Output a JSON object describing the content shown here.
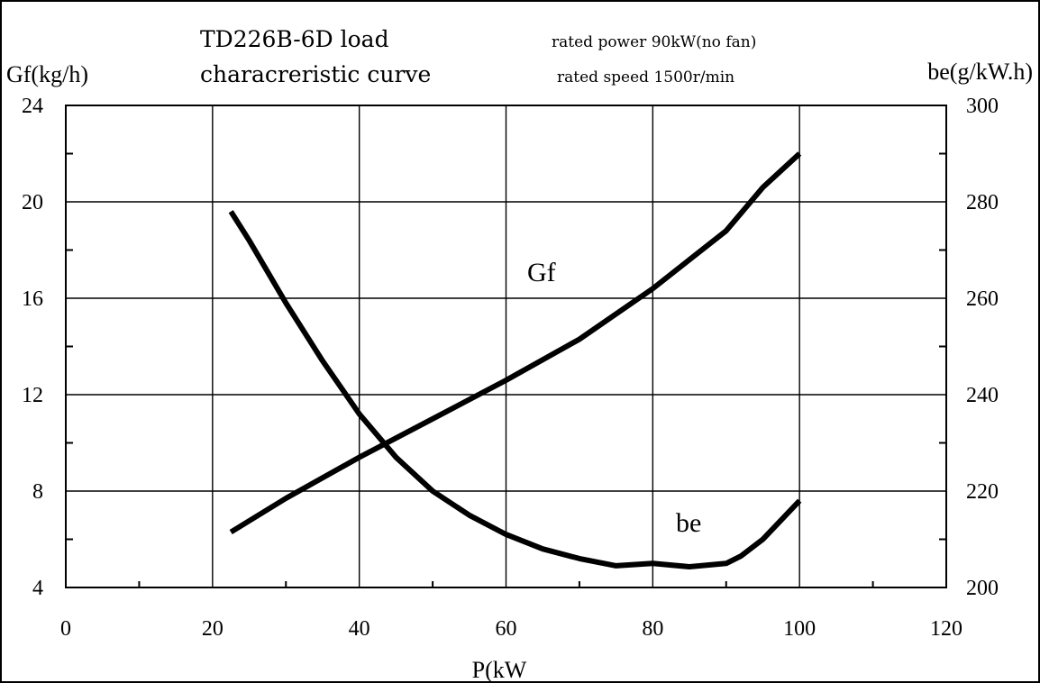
{
  "chart_data": {
    "type": "line",
    "title": "TD226B-6D  load",
    "subtitle": "characreristic curve",
    "notes": [
      "rated power 90kW(no fan)",
      "rated speed 1500r/min"
    ],
    "xlabel": "P(kW",
    "ylabel_left": "Gf(kg/h)",
    "ylabel_right": "be(g/kW.h)",
    "xlim": [
      0,
      120
    ],
    "ylim_left": [
      4,
      24
    ],
    "ylim_right": [
      200,
      300
    ],
    "x_ticks": [
      "0",
      "20",
      "40",
      "60",
      "80",
      "100",
      "120"
    ],
    "y_left_ticks": [
      "4",
      "8",
      "12",
      "16",
      "20",
      "24"
    ],
    "y_right_ticks": [
      "200",
      "220",
      "240",
      "260",
      "280",
      "300"
    ],
    "grid": true,
    "series": [
      {
        "name": "Gf",
        "axis": "left",
        "x": [
          22.5,
          30,
          40,
          50,
          60,
          70,
          80,
          90,
          95,
          100
        ],
        "y": [
          6.3,
          7.7,
          9.4,
          11.0,
          12.6,
          14.3,
          16.4,
          18.8,
          20.6,
          22.0
        ]
      },
      {
        "name": "be",
        "axis": "right",
        "x": [
          22.5,
          25,
          30,
          35,
          40,
          45,
          50,
          55,
          60,
          65,
          70,
          75,
          80,
          85,
          90,
          92,
          95,
          100
        ],
        "y": [
          278,
          272,
          259,
          247,
          236,
          227,
          220,
          215,
          211,
          208,
          206,
          204.5,
          205,
          204.3,
          205,
          206.5,
          210,
          218
        ]
      }
    ]
  }
}
